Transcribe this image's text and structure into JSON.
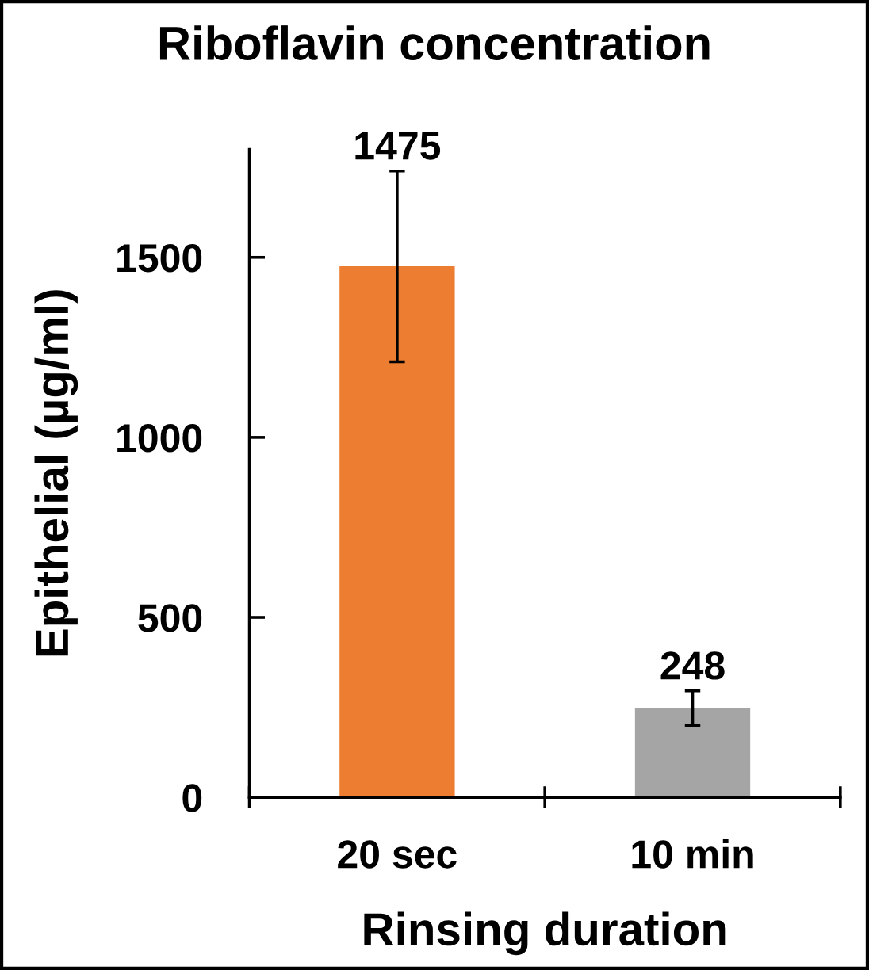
{
  "chart_data": {
    "type": "bar",
    "title": "Riboflavin concentration",
    "xlabel": "Rinsing duration",
    "ylabel": "Epithelial (µg/ml)",
    "categories": [
      "20 sec",
      "10 min"
    ],
    "values": [
      1475,
      248
    ],
    "colors": [
      "#ed7d31",
      "#a5a5a5"
    ],
    "errors": [
      265,
      48
    ],
    "ylim": [
      0,
      1800
    ],
    "yticks": [
      0,
      500,
      1000,
      1500
    ],
    "data_labels": true
  }
}
